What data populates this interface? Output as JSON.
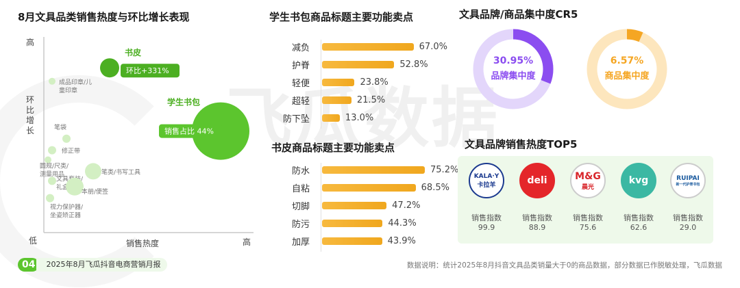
{
  "watermark": "飞瓜数据",
  "scatter_panel": {
    "title": "8月文具品类销售热度与环比增长表现"
  },
  "bags_panel": {
    "title": "学生书包商品标题主要功能卖点"
  },
  "cover_panel": {
    "title": "书皮商品标题主要功能卖点"
  },
  "cr5_panel": {
    "title": "文具品牌/商品集中度CR5",
    "brand": {
      "pct": "30.95%",
      "label": "品牌集中度",
      "value": 30.95,
      "color": "#8b4df0",
      "track": "#e3d6fb"
    },
    "product": {
      "pct": "6.57%",
      "label": "商品集中度",
      "value": 6.57,
      "color": "#f5a623",
      "track": "#fde6bd"
    }
  },
  "top5_panel": {
    "title": "文具品牌销售热度TOP5",
    "metric_label": "销售指数",
    "brands": [
      {
        "logo_text": "KALA·Y",
        "logo_sub": "卡拉羊",
        "value": "99.9",
        "bg": "#ffffff",
        "fg": "#1b3a8f",
        "border": "#1b3a8f"
      },
      {
        "logo_text": "deli",
        "logo_sub": "",
        "value": "88.9",
        "bg": "#e4262a",
        "fg": "#ffffff",
        "border": "#e4262a"
      },
      {
        "logo_text": "M&G",
        "logo_sub": "晨光",
        "value": "75.6",
        "bg": "#ffffff",
        "fg": "#d8262b",
        "border": "#cccccc"
      },
      {
        "logo_text": "kvg",
        "logo_sub": "",
        "value": "62.6",
        "bg": "#3bb8a3",
        "fg": "#ffffff",
        "border": "#3bb8a3"
      },
      {
        "logo_text": "RUIPAI",
        "logo_sub": "新一代护脊书包",
        "value": "29.0",
        "bg": "#ffffff",
        "fg": "#1a5a9e",
        "border": "#cccccc"
      }
    ]
  },
  "footer": {
    "page": "04",
    "title": "2025年8月飞瓜抖音电商营销月报",
    "note": "数据说明：统计2025年8月抖音文具品类销量大于0的商品数据，部分数据已作脱敏处理，飞瓜数据"
  },
  "chart_data": [
    {
      "type": "scatter",
      "xlabel": "销售热度",
      "ylabel": "环比增长",
      "x_low": "低",
      "x_high": "高",
      "y_high": "高",
      "points": [
        {
          "name": "书皮",
          "x": 32,
          "y": 86,
          "size": 14,
          "color": "#4caf22",
          "callout": "环比+331%"
        },
        {
          "name": "学生书包",
          "x": 86,
          "y": 53,
          "size": 42,
          "color": "#5cc52e",
          "callout": "销售占比 44%"
        },
        {
          "name": "成品印章/儿童印章",
          "x": 4,
          "y": 79,
          "size": 5,
          "color": "#d3efc3"
        },
        {
          "name": "笔袋",
          "x": 11,
          "y": 49,
          "size": 6,
          "color": "#d3efc3"
        },
        {
          "name": "修正带",
          "x": 4,
          "y": 43,
          "size": 6,
          "color": "#d3efc3"
        },
        {
          "name": "圆规/尺类/测量用品",
          "x": 2,
          "y": 38,
          "size": 5,
          "color": "#d3efc3"
        },
        {
          "name": "笔类/书写工具",
          "x": 24,
          "y": 32,
          "size": 12,
          "color": "#d3efc3"
        },
        {
          "name": "文具套装/礼盒",
          "x": 4,
          "y": 27,
          "size": 6,
          "color": "#d3efc3"
        },
        {
          "name": "本册/便签",
          "x": 15,
          "y": 24,
          "size": 13,
          "color": "#d3efc3"
        },
        {
          "name": "视力保护器/坐姿矫正器",
          "x": 3,
          "y": 18,
          "size": 6,
          "color": "#d3efc3"
        }
      ]
    },
    {
      "type": "bar",
      "title": "学生书包商品标题主要功能卖点",
      "categories": [
        "减负",
        "护脊",
        "轻便",
        "超轻",
        "防下坠"
      ],
      "values": [
        67.0,
        52.8,
        23.8,
        21.5,
        13.0
      ],
      "labels": [
        "67.0%",
        "52.8%",
        "23.8%",
        "21.5%",
        "13.0%"
      ],
      "xlim": [
        0,
        100
      ]
    },
    {
      "type": "bar",
      "title": "书皮商品标题主要功能卖点",
      "categories": [
        "防水",
        "自粘",
        "切脚",
        "防污",
        "加厚"
      ],
      "values": [
        75.2,
        68.5,
        47.2,
        44.3,
        43.9
      ],
      "labels": [
        "75.2%",
        "68.5%",
        "47.2%",
        "44.3%",
        "43.9%"
      ],
      "xlim": [
        0,
        100
      ]
    }
  ]
}
